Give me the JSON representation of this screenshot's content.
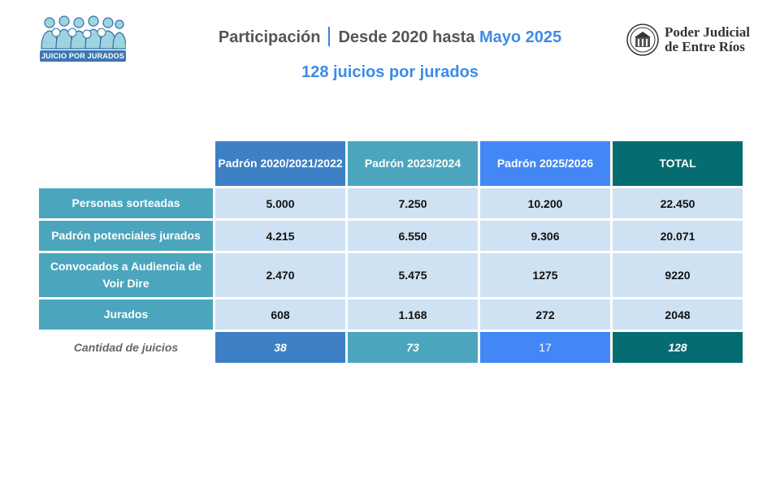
{
  "header": {
    "logo_left_text": "JUICIO POR JURADOS",
    "title_part1": "Participación",
    "title_part2": "Desde 2020 hasta",
    "title_accent": "Mayo 2025",
    "subtitle": "128 juicios por jurados",
    "logo_right_line1": "Poder Judicial",
    "logo_right_line2": "de Entre Ríos"
  },
  "table": {
    "columns": [
      "Padrón 2020/2021/2022",
      "Padrón 2023/2024",
      "Padrón 2025/2026",
      "TOTAL"
    ],
    "rows": [
      {
        "label": "Personas sorteadas",
        "values": [
          "5.000",
          "7.250",
          "10.200",
          "22.450"
        ]
      },
      {
        "label": "Padrón potenciales jurados",
        "values": [
          "4.215",
          "6.550",
          "9.306",
          "20.071"
        ]
      },
      {
        "label": "Convocados a Audiencia de Voir Dire",
        "values": [
          "2.470",
          "5.475",
          "1275",
          "9220"
        ]
      },
      {
        "label": "Jurados",
        "values": [
          "608",
          "1.168",
          "272",
          "2048"
        ]
      }
    ],
    "footer": {
      "label": "Cantidad de juicios",
      "values": [
        "38",
        "73",
        "17",
        "128"
      ]
    }
  },
  "colors": {
    "col1": "#3d80c6",
    "col2": "#4ba6bd",
    "col3": "#4287f5",
    "col4": "#056d72",
    "cell": "#cfe2f3",
    "accent": "#3d8be8"
  }
}
